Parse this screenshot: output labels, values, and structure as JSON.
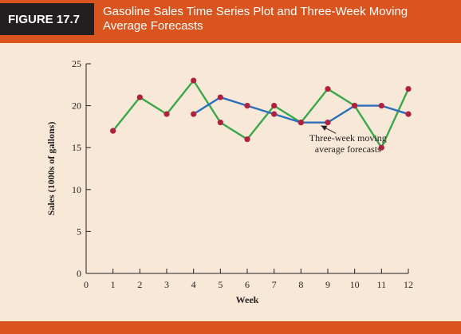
{
  "figure": {
    "label": "FIGURE 17.7",
    "title": "Gasoline Sales Time Series Plot and Three-Week Moving Average Forecasts"
  },
  "colors": {
    "header": "#d9541e",
    "background": "#f8e8d8",
    "series_actual": "#3aa84a",
    "series_forecast": "#2a6fba",
    "markers": "#b0213d"
  },
  "chart_data": {
    "type": "line",
    "xlabel": "Week",
    "ylabel": "Sales (1000s of gallons)",
    "xlim": [
      0,
      12
    ],
    "ylim": [
      0,
      25
    ],
    "xticks": [
      "0",
      "1",
      "2",
      "3",
      "4",
      "5",
      "6",
      "7",
      "8",
      "9",
      "10",
      "11",
      "12"
    ],
    "yticks": [
      "0",
      "5",
      "10",
      "15",
      "20",
      "25"
    ],
    "grid": false,
    "series": [
      {
        "x": [
          1,
          2,
          3,
          4,
          5,
          6,
          7,
          8,
          9,
          10,
          11,
          12
        ],
        "values": [
          17,
          21,
          19,
          23,
          18,
          16,
          20,
          18,
          22,
          20,
          15,
          22
        ]
      },
      {
        "x": [
          4,
          5,
          6,
          7,
          8,
          9,
          10,
          11,
          12
        ],
        "values": [
          19,
          21,
          20,
          19,
          18,
          18,
          20,
          20,
          19
        ]
      }
    ],
    "annotation": {
      "lines": [
        "Three-week moving",
        "average forecasts"
      ],
      "points_to": [
        8.75,
        18
      ]
    }
  }
}
